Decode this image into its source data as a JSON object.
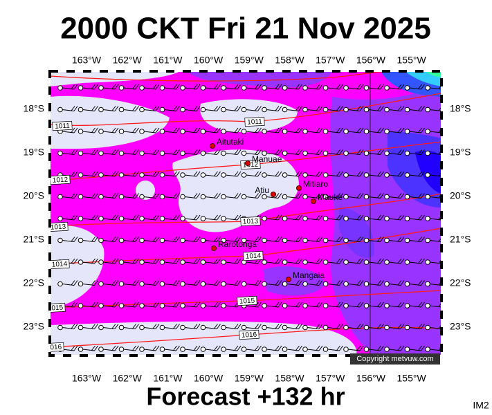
{
  "title": "2000 CKT Fri 21 Nov 2025",
  "footer": "Forecast +132 hr",
  "image_id": "IM2",
  "copyright": "Copyright metvuw.com",
  "longitude_labels": [
    "163°W",
    "162°W",
    "161°W",
    "160°W",
    "159°W",
    "158°W",
    "157°W",
    "156°W",
    "155°W"
  ],
  "latitude_labels": [
    "18°S",
    "19°S",
    "20°S",
    "21°S",
    "22°S",
    "23°S"
  ],
  "places": [
    "Aitutaki",
    "Manuae",
    "Atiu",
    "Mitiaro",
    "Mauke",
    "Rarotonga",
    "Mangaia"
  ],
  "isobars": [
    "1011",
    "1012",
    "1013",
    "1014",
    "1015",
    "1016"
  ]
}
